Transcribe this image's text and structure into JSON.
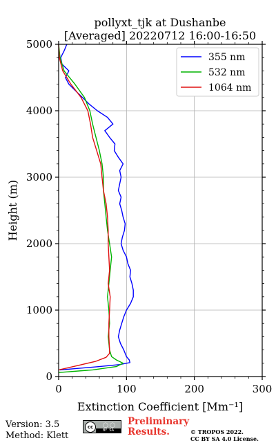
{
  "chart_data": {
    "type": "line",
    "title_line1": "pollyxt_tjk at Dushanbe",
    "title_line2": "[Averaged] 20220712 16:00-16:50",
    "xlabel": "Extinction Coefficient [Mm⁻¹]",
    "ylabel": "Height (m)",
    "xlim": [
      0,
      300
    ],
    "ylim": [
      0,
      5000
    ],
    "xticks": [
      0,
      100,
      200,
      300
    ],
    "yticks": [
      0,
      1000,
      2000,
      3000,
      4000,
      5000
    ],
    "grid": true,
    "legend_position": "top-right",
    "series": [
      {
        "name": "355 nm",
        "color": "#0000ff",
        "points": [
          [
            2,
            100
          ],
          [
            60,
            150
          ],
          [
            90,
            180
          ],
          [
            105,
            210
          ],
          [
            104,
            250
          ],
          [
            100,
            300
          ],
          [
            96,
            400
          ],
          [
            91,
            500
          ],
          [
            88,
            600
          ],
          [
            90,
            700
          ],
          [
            93,
            800
          ],
          [
            96,
            900
          ],
          [
            100,
            1000
          ],
          [
            106,
            1100
          ],
          [
            110,
            1200
          ],
          [
            110,
            1300
          ],
          [
            108,
            1400
          ],
          [
            105,
            1500
          ],
          [
            106,
            1600
          ],
          [
            102,
            1700
          ],
          [
            100,
            1800
          ],
          [
            95,
            1900
          ],
          [
            92,
            2000
          ],
          [
            94,
            2100
          ],
          [
            97,
            2200
          ],
          [
            98,
            2300
          ],
          [
            95,
            2400
          ],
          [
            93,
            2500
          ],
          [
            90,
            2600
          ],
          [
            92,
            2700
          ],
          [
            88,
            2800
          ],
          [
            90,
            2900
          ],
          [
            92,
            3000
          ],
          [
            90,
            3100
          ],
          [
            95,
            3200
          ],
          [
            88,
            3300
          ],
          [
            82,
            3400
          ],
          [
            83,
            3500
          ],
          [
            75,
            3600
          ],
          [
            68,
            3700
          ],
          [
            80,
            3800
          ],
          [
            72,
            3900
          ],
          [
            57,
            4000
          ],
          [
            45,
            4100
          ],
          [
            35,
            4200
          ],
          [
            25,
            4300
          ],
          [
            15,
            4400
          ],
          [
            10,
            4500
          ],
          [
            15,
            4600
          ],
          [
            5,
            4700
          ],
          [
            3,
            4800
          ],
          [
            8,
            4900
          ],
          [
            12,
            5000
          ]
        ]
      },
      {
        "name": "532 nm",
        "color": "#00b400",
        "points": [
          [
            0,
            60
          ],
          [
            50,
            100
          ],
          [
            85,
            150
          ],
          [
            95,
            200
          ],
          [
            85,
            250
          ],
          [
            78,
            300
          ],
          [
            75,
            400
          ],
          [
            73,
            600
          ],
          [
            75,
            800
          ],
          [
            74,
            1000
          ],
          [
            72,
            1200
          ],
          [
            74,
            1400
          ],
          [
            76,
            1600
          ],
          [
            78,
            1800
          ],
          [
            75,
            2000
          ],
          [
            72,
            2200
          ],
          [
            70,
            2400
          ],
          [
            68,
            2600
          ],
          [
            66,
            2800
          ],
          [
            66,
            3000
          ],
          [
            64,
            3200
          ],
          [
            60,
            3400
          ],
          [
            55,
            3600
          ],
          [
            50,
            3800
          ],
          [
            46,
            4000
          ],
          [
            38,
            4200
          ],
          [
            24,
            4400
          ],
          [
            8,
            4600
          ],
          [
            2,
            4800
          ],
          [
            0,
            5000
          ]
        ]
      },
      {
        "name": "1064 nm",
        "color": "#e01010",
        "points": [
          [
            0,
            100
          ],
          [
            30,
            170
          ],
          [
            55,
            230
          ],
          [
            70,
            290
          ],
          [
            75,
            350
          ],
          [
            75,
            400
          ],
          [
            74,
            600
          ],
          [
            74,
            800
          ],
          [
            75,
            1000
          ],
          [
            76,
            1200
          ],
          [
            73,
            1400
          ],
          [
            75,
            1600
          ],
          [
            74,
            1800
          ],
          [
            73,
            2000
          ],
          [
            73,
            2200
          ],
          [
            72,
            2400
          ],
          [
            70,
            2600
          ],
          [
            66,
            2800
          ],
          [
            64,
            3000
          ],
          [
            62,
            3200
          ],
          [
            56,
            3400
          ],
          [
            50,
            3600
          ],
          [
            47,
            3800
          ],
          [
            43,
            4000
          ],
          [
            33,
            4200
          ],
          [
            18,
            4400
          ],
          [
            6,
            4600
          ],
          [
            1,
            4800
          ],
          [
            0,
            5000
          ]
        ]
      }
    ]
  },
  "footer": {
    "version": "Version: 3.5",
    "method": "Method: Klett",
    "preliminary_line1": "Preliminary",
    "preliminary_line2": "Results.",
    "copyright_line1": "© TROPOS 2022.",
    "copyright_line2": "CC BY SA 4.0 License.",
    "license_logo": {
      "cc": "cc",
      "by": "BY",
      "sa": "SA"
    }
  }
}
